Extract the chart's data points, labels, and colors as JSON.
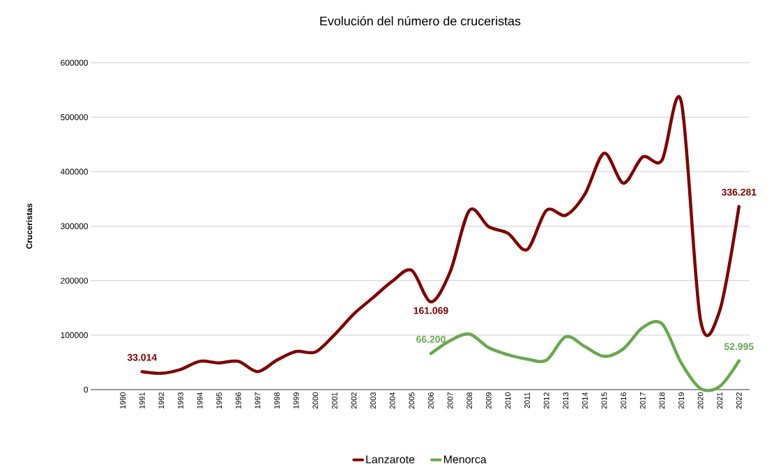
{
  "chart_data": {
    "type": "line",
    "title": "Evolución del número de cruceristas",
    "ylabel": "Cruceristas",
    "categories": [
      "1990",
      "1991",
      "1992",
      "1993",
      "1994",
      "1995",
      "1996",
      "1997",
      "1998",
      "1999",
      "2000",
      "2001",
      "2002",
      "2003",
      "2004",
      "2005",
      "2006",
      "2007",
      "2008",
      "2009",
      "2010",
      "2011",
      "2012",
      "2013",
      "2014",
      "2015",
      "2016",
      "2017",
      "2018",
      "2019",
      "2020",
      "2021",
      "2022"
    ],
    "series": [
      {
        "name": "Lanzarote",
        "color": "#7f0000",
        "values": [
          null,
          33014,
          30000,
          37000,
          52000,
          49000,
          52000,
          33000,
          54000,
          70000,
          69000,
          101000,
          139000,
          169000,
          199000,
          219000,
          161069,
          216000,
          329000,
          299000,
          287000,
          257000,
          329000,
          320000,
          359000,
          434000,
          379000,
          427000,
          421000,
          529000,
          128000,
          145000,
          336281
        ],
        "value_labels": [
          null,
          "33.014",
          null,
          null,
          null,
          null,
          null,
          null,
          null,
          null,
          null,
          null,
          null,
          null,
          null,
          null,
          "161.069",
          null,
          null,
          null,
          null,
          null,
          null,
          null,
          null,
          null,
          null,
          null,
          null,
          null,
          null,
          null,
          "336.281"
        ]
      },
      {
        "name": "Menorca",
        "color": "#6aa84f",
        "values": [
          null,
          null,
          null,
          null,
          null,
          null,
          null,
          null,
          null,
          null,
          null,
          null,
          null,
          null,
          null,
          null,
          66200,
          90000,
          102000,
          77000,
          64000,
          56000,
          54000,
          97000,
          79000,
          61000,
          75000,
          114000,
          121000,
          49000,
          2000,
          6000,
          52995
        ],
        "value_labels": [
          null,
          null,
          null,
          null,
          null,
          null,
          null,
          null,
          null,
          null,
          null,
          null,
          null,
          null,
          null,
          null,
          "66.200",
          null,
          null,
          null,
          null,
          null,
          null,
          null,
          null,
          null,
          null,
          null,
          null,
          null,
          null,
          null,
          "52.995"
        ]
      }
    ],
    "ylim": [
      0,
      600000
    ],
    "yticks": [
      0,
      100000,
      200000,
      300000,
      400000,
      500000,
      600000
    ],
    "grid": "y",
    "legend": "bottom"
  }
}
